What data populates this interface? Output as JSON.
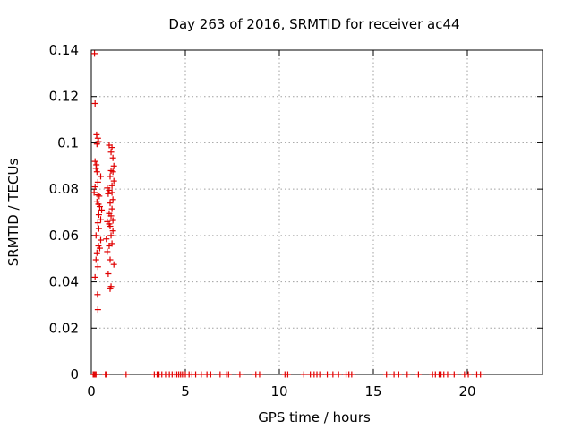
{
  "chart_data": {
    "type": "scatter",
    "title": "Day 263 of 2016, SRMTID for receiver ac44",
    "xlabel": "GPS time / hours",
    "ylabel": "SRMTID / TECUs",
    "xlim": [
      0,
      24
    ],
    "ylim": [
      0,
      0.14
    ],
    "xticks": [
      0,
      5,
      10,
      15,
      20
    ],
    "xtick_labels": [
      "0",
      "5",
      "10",
      "15",
      "20"
    ],
    "yticks": [
      0,
      0.02,
      0.04,
      0.06,
      0.08,
      0.1,
      0.12,
      0.14
    ],
    "ytick_labels": [
      "0",
      "0.02",
      "0.04",
      "0.06",
      "0.08",
      "0.1",
      "0.12",
      "0.14"
    ],
    "grid": true,
    "marker": "+",
    "color": "#e00000",
    "series": [
      {
        "name": "SRMTID",
        "points": [
          [
            0.17,
            0.1385
          ],
          [
            0.2,
            0.117
          ],
          [
            0.28,
            0.1035
          ],
          [
            0.35,
            0.102
          ],
          [
            0.38,
            0.1005
          ],
          [
            0.3,
            0.0995
          ],
          [
            0.2,
            0.092
          ],
          [
            0.27,
            0.0905
          ],
          [
            0.25,
            0.089
          ],
          [
            0.3,
            0.0875
          ],
          [
            0.5,
            0.0855
          ],
          [
            0.35,
            0.083
          ],
          [
            0.2,
            0.081
          ],
          [
            0.15,
            0.0785
          ],
          [
            0.35,
            0.0775
          ],
          [
            0.42,
            0.077
          ],
          [
            0.3,
            0.0745
          ],
          [
            0.38,
            0.0735
          ],
          [
            0.45,
            0.0725
          ],
          [
            0.55,
            0.071
          ],
          [
            0.4,
            0.069
          ],
          [
            0.5,
            0.067
          ],
          [
            0.35,
            0.0655
          ],
          [
            0.4,
            0.063
          ],
          [
            0.25,
            0.06
          ],
          [
            0.5,
            0.058
          ],
          [
            0.38,
            0.0555
          ],
          [
            0.45,
            0.0545
          ],
          [
            0.3,
            0.0525
          ],
          [
            0.25,
            0.0495
          ],
          [
            0.35,
            0.0465
          ],
          [
            0.2,
            0.042
          ],
          [
            0.33,
            0.0345
          ],
          [
            0.35,
            0.028
          ],
          [
            0.95,
            0.099
          ],
          [
            1.1,
            0.098
          ],
          [
            1.05,
            0.096
          ],
          [
            1.15,
            0.0935
          ],
          [
            1.2,
            0.09
          ],
          [
            1.05,
            0.088
          ],
          [
            1.15,
            0.0875
          ],
          [
            1.0,
            0.0855
          ],
          [
            1.2,
            0.0835
          ],
          [
            1.1,
            0.0815
          ],
          [
            0.85,
            0.0805
          ],
          [
            0.95,
            0.0795
          ],
          [
            1.1,
            0.0785
          ],
          [
            0.9,
            0.078
          ],
          [
            1.15,
            0.0755
          ],
          [
            1.0,
            0.074
          ],
          [
            1.1,
            0.0715
          ],
          [
            0.95,
            0.0695
          ],
          [
            1.05,
            0.0685
          ],
          [
            1.15,
            0.0665
          ],
          [
            0.85,
            0.066
          ],
          [
            0.95,
            0.065
          ],
          [
            1.0,
            0.064
          ],
          [
            1.15,
            0.062
          ],
          [
            1.05,
            0.06
          ],
          [
            0.8,
            0.0585
          ],
          [
            1.1,
            0.0565
          ],
          [
            0.95,
            0.0555
          ],
          [
            0.85,
            0.053
          ],
          [
            1.0,
            0.0495
          ],
          [
            1.2,
            0.0475
          ],
          [
            0.9,
            0.0435
          ],
          [
            1.05,
            0.038
          ],
          [
            1.0,
            0.037
          ],
          [
            0.1,
            0
          ],
          [
            0.15,
            0
          ],
          [
            0.2,
            0
          ],
          [
            0.25,
            0
          ],
          [
            0.75,
            0
          ],
          [
            0.8,
            0
          ],
          [
            1.85,
            0
          ],
          [
            3.35,
            0
          ],
          [
            3.5,
            0
          ],
          [
            3.6,
            0
          ],
          [
            3.75,
            0
          ],
          [
            3.95,
            0
          ],
          [
            4.15,
            0
          ],
          [
            4.3,
            0
          ],
          [
            4.45,
            0
          ],
          [
            4.55,
            0
          ],
          [
            4.65,
            0
          ],
          [
            4.75,
            0
          ],
          [
            4.85,
            0
          ],
          [
            5.0,
            0
          ],
          [
            5.2,
            0
          ],
          [
            5.35,
            0
          ],
          [
            5.55,
            0
          ],
          [
            5.85,
            0
          ],
          [
            6.15,
            0
          ],
          [
            6.35,
            0
          ],
          [
            6.85,
            0
          ],
          [
            7.2,
            0
          ],
          [
            7.3,
            0
          ],
          [
            7.9,
            0
          ],
          [
            8.75,
            0
          ],
          [
            8.95,
            0
          ],
          [
            10.3,
            0
          ],
          [
            10.45,
            0
          ],
          [
            11.3,
            0
          ],
          [
            11.65,
            0
          ],
          [
            11.85,
            0
          ],
          [
            12.0,
            0
          ],
          [
            12.15,
            0
          ],
          [
            12.55,
            0
          ],
          [
            12.85,
            0
          ],
          [
            13.15,
            0
          ],
          [
            13.55,
            0
          ],
          [
            13.7,
            0
          ],
          [
            13.85,
            0
          ],
          [
            15.7,
            0
          ],
          [
            16.1,
            0
          ],
          [
            16.35,
            0
          ],
          [
            16.8,
            0
          ],
          [
            17.4,
            0
          ],
          [
            18.15,
            0
          ],
          [
            18.3,
            0
          ],
          [
            18.5,
            0
          ],
          [
            18.6,
            0
          ],
          [
            18.75,
            0
          ],
          [
            18.95,
            0
          ],
          [
            19.3,
            0
          ],
          [
            19.85,
            0
          ],
          [
            20.05,
            0
          ],
          [
            20.5,
            0
          ],
          [
            20.7,
            0
          ]
        ]
      }
    ]
  }
}
